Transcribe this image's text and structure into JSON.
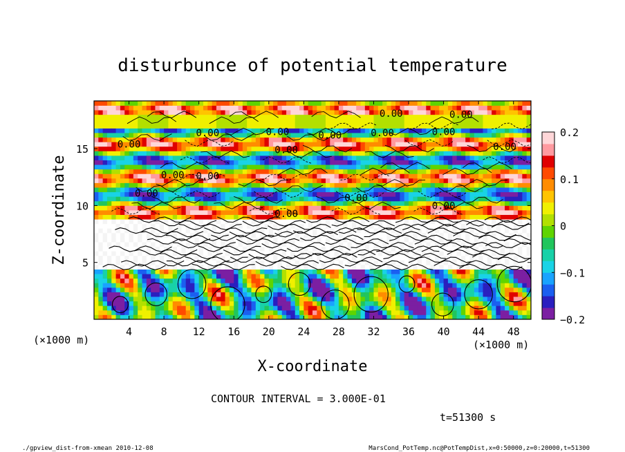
{
  "chart_data": {
    "type": "heatmap",
    "title": "disturbunce of potential temperature",
    "xlabel": "X-coordinate",
    "ylabel": "Z-coordinate",
    "x_unit_left": "(×1000 m)",
    "x_unit_right": "(×1000 m)",
    "xlim": [
      0,
      50
    ],
    "ylim": [
      0,
      19.2
    ],
    "x_ticks": [
      4,
      8,
      12,
      16,
      20,
      24,
      28,
      32,
      36,
      40,
      44,
      48
    ],
    "y_ticks": [
      5,
      10,
      15
    ],
    "colorbar": {
      "ticks": [
        {
          "value": 0.2,
          "label": "0.2"
        },
        {
          "value": 0.1,
          "label": "0.1"
        },
        {
          "value": 0,
          "label": "0"
        },
        {
          "value": -0.1,
          "label": "−0.1"
        },
        {
          "value": -0.2,
          "label": "−0.2"
        }
      ],
      "range": [
        -0.2,
        0.2
      ],
      "colors": [
        "#7b1fa2",
        "#2a1fbf",
        "#1b5ff0",
        "#1aa3ff",
        "#19d3e6",
        "#18d1a8",
        "#21c55d",
        "#5fd400",
        "#b2e000",
        "#f0f000",
        "#ffc400",
        "#ff8c00",
        "#ff4a00",
        "#e00000",
        "#ff9aa0",
        "#ffd6d8"
      ]
    },
    "contour_interval_text": "CONTOUR INTERVAL = 3.000E-01",
    "contour_label": "0.00",
    "time_text": "t=51300 s"
  },
  "footer": {
    "left": "./gpview_dist-from-xmean   2010-12-08",
    "right": "MarsCond_PotTemp.nc@PotTempDist,x=0:50000,z=0:20000,t=51300"
  }
}
